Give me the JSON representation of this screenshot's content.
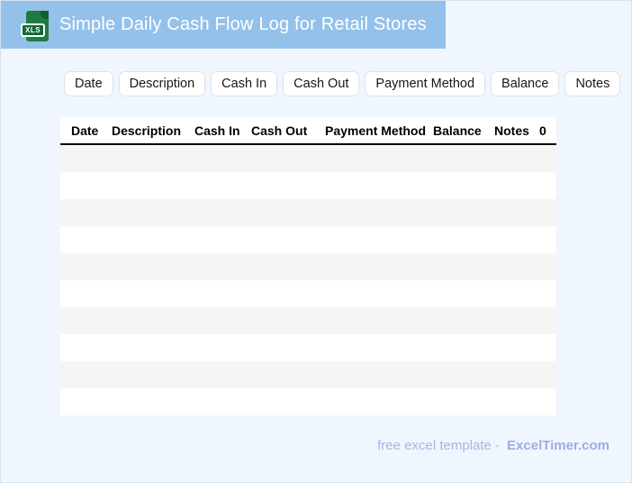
{
  "colors": {
    "header_bar": "#93c1ea",
    "page_background": "#f0f6fd",
    "row_stripe": "#f5f5f3",
    "icon_green": "#1e7b41",
    "icon_fold_green": "#135c30",
    "icon_badge_green": "#0e6d35",
    "footer_text": "#a8b5e2",
    "footer_brand": "#9dade0"
  },
  "header": {
    "title": "Simple Daily Cash Flow Log for Retail Stores",
    "file_type_badge": "XLS"
  },
  "column_pills": [
    "Date",
    "Description",
    "Cash In",
    "Cash Out",
    "Payment Method",
    "Balance",
    "Notes"
  ],
  "table": {
    "headers": [
      "Date",
      "Description",
      "Cash In",
      "Cash Out",
      "Payment Method",
      "Balance",
      "Notes",
      "0"
    ],
    "row_count": 10,
    "rows": []
  },
  "footer": {
    "label": "free excel template -",
    "brand": "ExcelTimer.com"
  }
}
